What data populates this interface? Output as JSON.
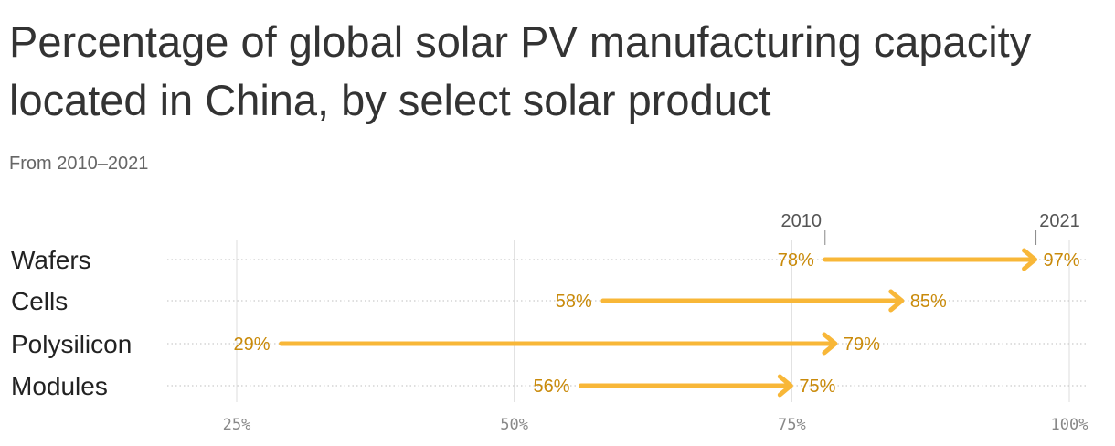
{
  "chart_data": {
    "type": "dumbbell-arrow",
    "title": "Percentage of global solar PV manufacturing capacity located in China, by select solar product",
    "subtitle": "From 2010–2021",
    "legend": {
      "start": "2010",
      "end": "2021"
    },
    "categories": [
      "Wafers",
      "Cells",
      "Polysilicon",
      "Modules"
    ],
    "series": [
      {
        "name": "2010",
        "values": [
          78,
          58,
          29,
          56
        ]
      },
      {
        "name": "2021",
        "values": [
          97,
          85,
          79,
          75
        ]
      }
    ],
    "value_labels_start": [
      "78%",
      "58%",
      "29%",
      "56%"
    ],
    "value_labels_end": [
      "97%",
      "85%",
      "79%",
      "75%"
    ],
    "x_ticks": [
      25,
      50,
      75,
      100
    ],
    "x_tick_labels": [
      "25%",
      "50%",
      "75%",
      "100%"
    ],
    "xlim": [
      19,
      100
    ],
    "grid": true
  },
  "colors": {
    "arrow": "#f8b738",
    "value_text": "#c98a0a",
    "title": "#333333",
    "grid": "#dddddd"
  }
}
